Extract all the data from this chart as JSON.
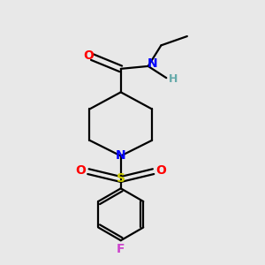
{
  "background_color": "#e8e8e8",
  "bond_color": "#000000",
  "N_color": "#0000ff",
  "O_color": "#ff0000",
  "S_color": "#cccc00",
  "F_color": "#cc44cc",
  "H_color": "#66aaaa",
  "line_width": 1.6,
  "figsize": [
    3.0,
    3.0
  ],
  "dpi": 100,
  "xlim": [
    0,
    10
  ],
  "ylim": [
    0,
    10
  ]
}
